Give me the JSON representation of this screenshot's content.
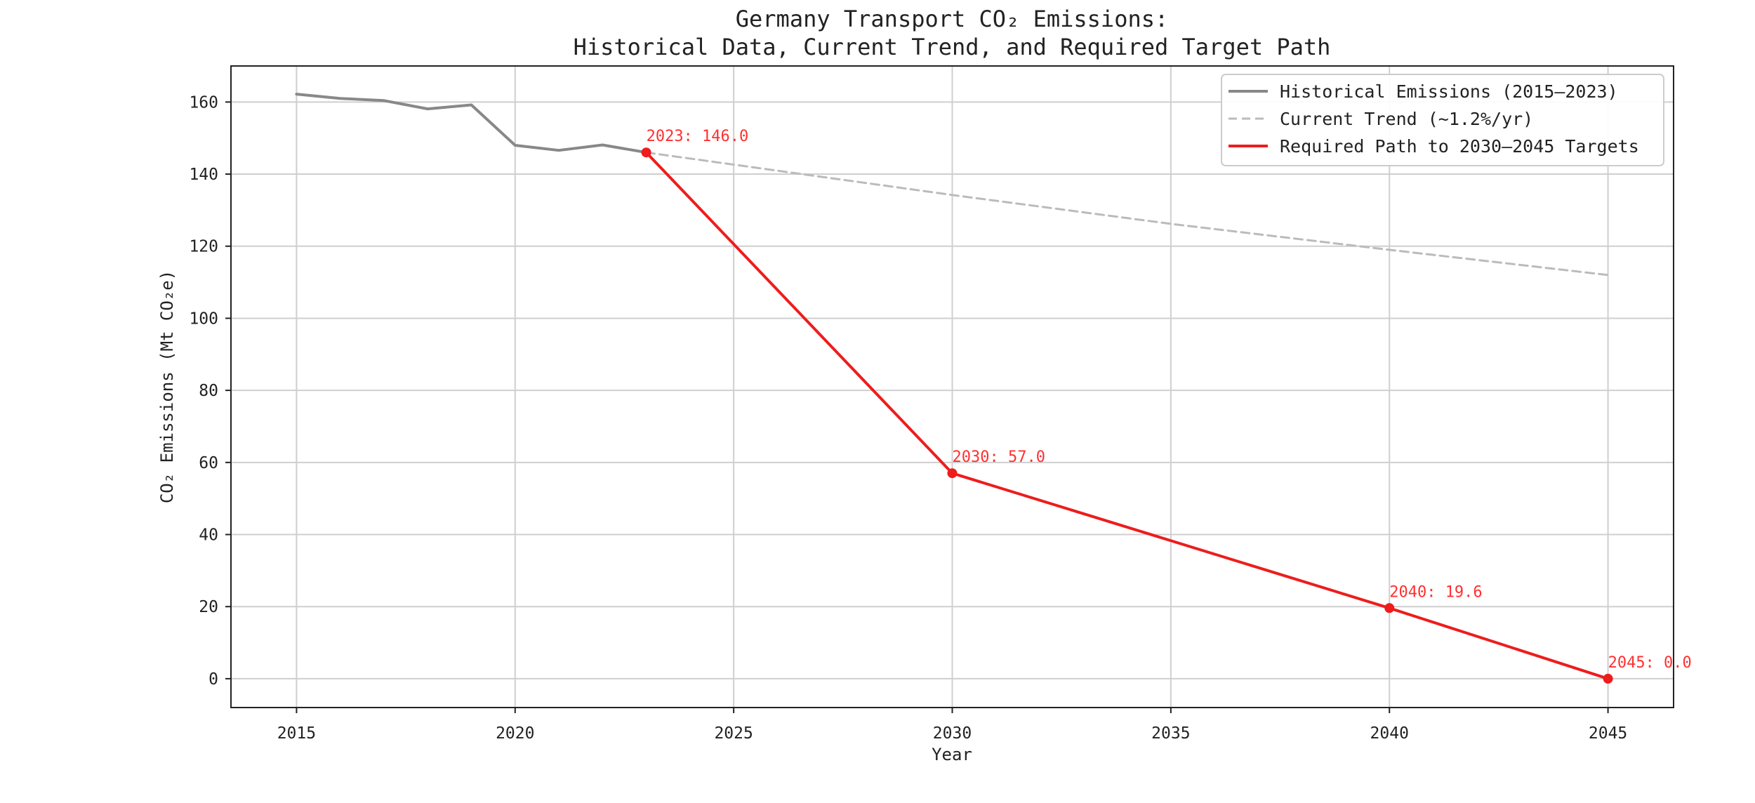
{
  "chart_data": {
    "type": "line",
    "title": "Germany Transport CO₂ Emissions:",
    "subtitle": "Historical Data, Current Trend, and Required Target Path",
    "xlabel": "Year",
    "ylabel": "CO₂ Emissions (Mt CO₂e)",
    "xlim": [
      2013.5,
      2046.5
    ],
    "ylim": [
      -8,
      170
    ],
    "xticks": [
      2015,
      2020,
      2025,
      2030,
      2035,
      2040,
      2045
    ],
    "yticks": [
      0,
      20,
      40,
      60,
      80,
      100,
      120,
      140,
      160
    ],
    "grid": true,
    "legend_position": "top-right",
    "colors": {
      "historical": "#888888",
      "trend": "#bbbbbb",
      "required": "#ee1c1c",
      "annotation": "#ff3030"
    },
    "series": [
      {
        "name": "Historical Emissions (2015–2023)",
        "style": "solid",
        "x": [
          2015,
          2016,
          2017,
          2018,
          2019,
          2020,
          2021,
          2022,
          2023
        ],
        "y": [
          162.2,
          161.0,
          160.4,
          158.1,
          159.2,
          148.0,
          146.6,
          148.1,
          146.0
        ]
      },
      {
        "name": "Current Trend (~1.2%/yr)",
        "style": "dashed",
        "x": [
          2023,
          2030,
          2035,
          2040,
          2045
        ],
        "y": [
          146.0,
          134.2,
          126.2,
          119.0,
          112.0
        ]
      },
      {
        "name": "Required Path to 2030–2045 Targets",
        "style": "solid",
        "markers": true,
        "x": [
          2023,
          2030,
          2040,
          2045
        ],
        "y": [
          146.0,
          57.0,
          19.6,
          0.0
        ]
      }
    ],
    "annotations": [
      {
        "text": "2023: 146.0",
        "x": 2023,
        "y": 146.0
      },
      {
        "text": "2030: 57.0",
        "x": 2030,
        "y": 57.0
      },
      {
        "text": "2040: 19.6",
        "x": 2040,
        "y": 19.6
      },
      {
        "text": "2045: 0.0",
        "x": 2045,
        "y": 0.0
      }
    ]
  }
}
